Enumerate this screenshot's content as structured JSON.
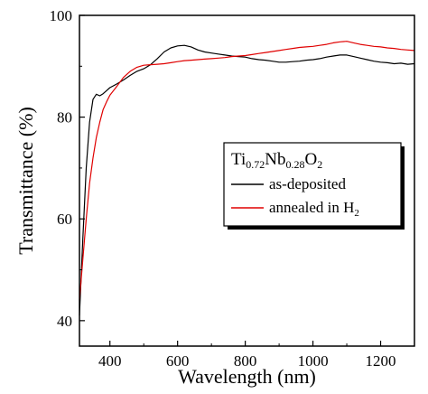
{
  "chart_data": {
    "type": "line",
    "xlabel": "Wavelength (nm)",
    "ylabel": "Transmittance (%)",
    "xlim": [
      310,
      1300
    ],
    "ylim": [
      35,
      100
    ],
    "x_ticks": [
      400,
      600,
      800,
      1000,
      1200
    ],
    "y_ticks": [
      40,
      60,
      80,
      100
    ],
    "grid": false,
    "legend": {
      "placement": "center-right",
      "title_parts": [
        "Ti",
        "0.72",
        "Nb",
        "0.28",
        "O",
        "2"
      ],
      "entries": [
        {
          "parts": [
            "as-deposited"
          ]
        },
        {
          "parts": [
            "annealed in H",
            "2"
          ]
        }
      ]
    },
    "series": [
      {
        "name": "as-deposited",
        "color": "#000000",
        "x": [
          310,
          320,
          330,
          340,
          350,
          360,
          370,
          380,
          390,
          400,
          420,
          440,
          460,
          480,
          500,
          520,
          540,
          560,
          580,
          600,
          620,
          640,
          660,
          680,
          700,
          720,
          740,
          760,
          780,
          800,
          820,
          840,
          860,
          880,
          900,
          920,
          940,
          960,
          980,
          1000,
          1020,
          1040,
          1060,
          1080,
          1100,
          1120,
          1140,
          1160,
          1180,
          1200,
          1220,
          1240,
          1260,
          1280,
          1300
        ],
        "y": [
          41,
          56,
          70,
          79,
          83.5,
          84.5,
          84.2,
          84.6,
          85.2,
          85.8,
          86.5,
          87.3,
          88.2,
          89,
          89.5,
          90.3,
          91.5,
          92.8,
          93.6,
          94,
          94.1,
          93.8,
          93.2,
          92.8,
          92.6,
          92.4,
          92.2,
          92,
          91.9,
          91.8,
          91.5,
          91.3,
          91.2,
          91,
          90.8,
          90.8,
          90.9,
          91,
          91.2,
          91.3,
          91.5,
          91.8,
          92,
          92.2,
          92.2,
          91.9,
          91.6,
          91.3,
          91,
          90.8,
          90.7,
          90.5,
          90.6,
          90.4,
          90.5
        ]
      },
      {
        "name": "annealed in H2",
        "color": "#e00000",
        "x": [
          310,
          320,
          330,
          340,
          350,
          360,
          370,
          380,
          390,
          400,
          420,
          440,
          460,
          480,
          500,
          520,
          540,
          560,
          580,
          600,
          620,
          640,
          660,
          680,
          700,
          720,
          740,
          760,
          780,
          800,
          820,
          840,
          860,
          880,
          900,
          920,
          940,
          960,
          980,
          1000,
          1020,
          1040,
          1060,
          1080,
          1100,
          1120,
          1140,
          1160,
          1180,
          1200,
          1220,
          1240,
          1260,
          1280,
          1300
        ],
        "y": [
          44,
          52,
          60,
          67,
          72,
          76,
          79,
          81.5,
          83,
          84.3,
          86,
          87.8,
          89,
          89.8,
          90.2,
          90.3,
          90.4,
          90.5,
          90.7,
          90.9,
          91.1,
          91.2,
          91.3,
          91.4,
          91.5,
          91.6,
          91.7,
          91.9,
          92,
          92.1,
          92.3,
          92.5,
          92.7,
          92.9,
          93.1,
          93.3,
          93.5,
          93.7,
          93.8,
          93.9,
          94.1,
          94.3,
          94.6,
          94.8,
          94.9,
          94.6,
          94.3,
          94.1,
          93.9,
          93.8,
          93.6,
          93.5,
          93.3,
          93.2,
          93.1
        ]
      }
    ]
  }
}
